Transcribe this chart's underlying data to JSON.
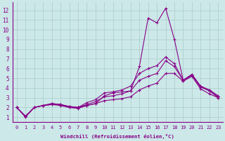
{
  "xlabel": "Windchill (Refroidissement éolien,°C)",
  "background_color": "#cce8e8",
  "grid_color": "#aacccc",
  "line_color": "#880088",
  "x_values": [
    0,
    1,
    2,
    3,
    4,
    5,
    6,
    7,
    8,
    9,
    10,
    11,
    12,
    13,
    14,
    15,
    16,
    17,
    18,
    19,
    20,
    21,
    22,
    23
  ],
  "lines": [
    [
      2.0,
      1.0,
      2.0,
      2.2,
      2.3,
      2.3,
      2.0,
      1.9,
      2.2,
      2.4,
      3.2,
      3.5,
      3.6,
      3.7,
      6.2,
      11.2,
      10.7,
      12.2,
      9.0,
      4.8,
      5.3,
      4.1,
      3.8,
      3.2
    ],
    [
      2.0,
      1.1,
      2.0,
      2.2,
      2.4,
      2.3,
      2.1,
      2.0,
      2.5,
      2.8,
      3.5,
      3.6,
      3.8,
      4.2,
      5.5,
      6.0,
      6.3,
      7.2,
      6.5,
      4.8,
      5.4,
      4.2,
      3.8,
      3.1
    ],
    [
      2.0,
      1.1,
      2.0,
      2.2,
      2.4,
      2.3,
      2.1,
      2.0,
      2.3,
      2.6,
      3.1,
      3.2,
      3.4,
      3.7,
      4.8,
      5.2,
      5.5,
      6.8,
      6.2,
      4.8,
      5.4,
      4.1,
      3.7,
      3.0
    ],
    [
      2.0,
      1.1,
      2.0,
      2.2,
      2.3,
      2.2,
      2.0,
      2.0,
      2.2,
      2.4,
      2.7,
      2.8,
      2.9,
      3.1,
      3.8,
      4.2,
      4.5,
      5.5,
      5.5,
      4.7,
      5.2,
      3.9,
      3.4,
      3.0
    ]
  ],
  "ylim": [
    0.5,
    12.8
  ],
  "xlim": [
    -0.5,
    23.5
  ],
  "yticks": [
    1,
    2,
    3,
    4,
    5,
    6,
    7,
    8,
    9,
    10,
    11,
    12
  ],
  "xticks": [
    0,
    1,
    2,
    3,
    4,
    5,
    6,
    7,
    8,
    9,
    10,
    11,
    12,
    13,
    14,
    15,
    16,
    17,
    18,
    19,
    20,
    21,
    22,
    23
  ]
}
